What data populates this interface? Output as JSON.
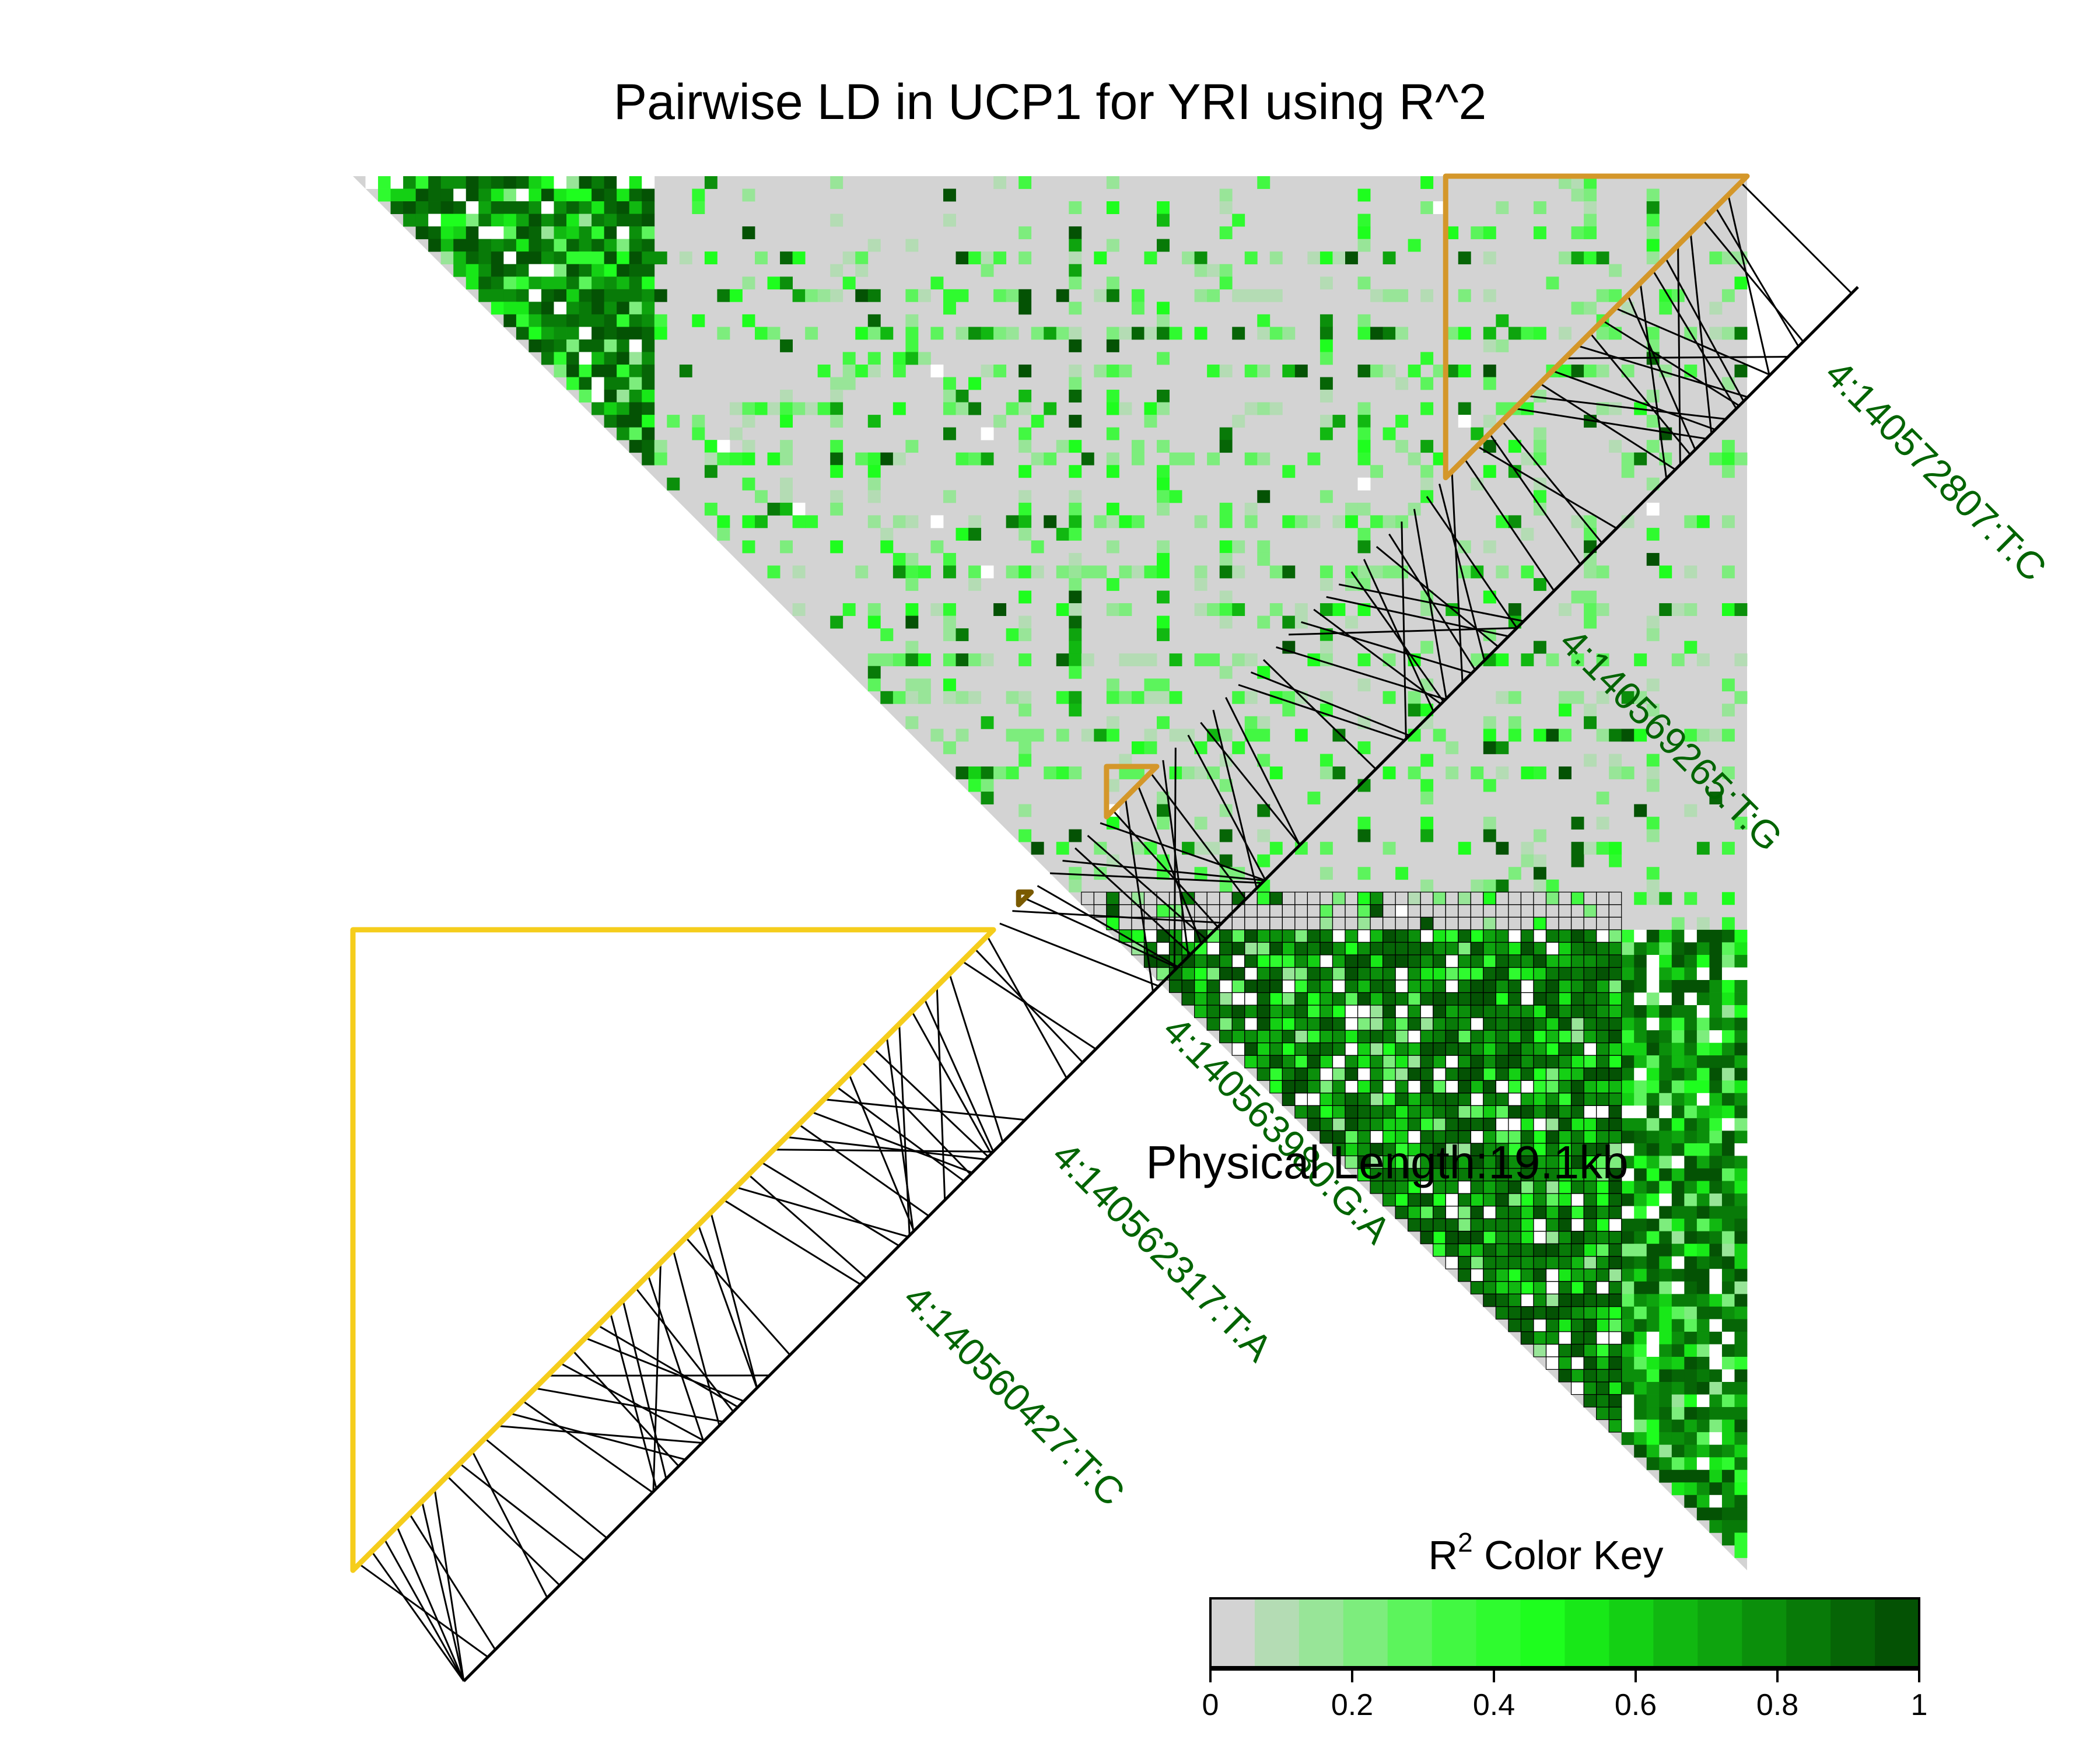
{
  "chart_data": {
    "type": "heatmap",
    "title": "Pairwise LD in UCP1 for YRI using R^2",
    "measure": "R^2",
    "physical_length_label": "Physical Length:19.1kb",
    "snp_count": 111,
    "snp_labels": [
      "4:140572807:T:C",
      "4:140569265:T:G",
      "4:140563980:G:A",
      "4:140562317:T:A",
      "4:140560427:T:C"
    ],
    "color_key": {
      "title_main": "R",
      "title_sup": "2",
      "title_rest": " Color Key",
      "ticks": [
        "0",
        "0.2",
        "0.4",
        "0.6",
        "0.8",
        "1"
      ],
      "range": [
        0,
        1
      ],
      "colors": [
        "#d3d3d3",
        "#b4dcb4",
        "#98e598",
        "#7ded7d",
        "#5cf45c",
        "#42f842",
        "#2ffb2f",
        "#1efe1e",
        "#18e818",
        "#14d014",
        "#11b811",
        "#0ea40e",
        "#0b8f0b",
        "#087a08",
        "#066506",
        "#045204"
      ]
    },
    "blocks": [
      {
        "snps": [
          1,
          24
        ],
        "color": "#d4972a"
      },
      {
        "snps": [
          48,
          51
        ],
        "color": "#d4972a"
      },
      {
        "snps": [
          58,
          58
        ],
        "color": "#7a5a00"
      },
      {
        "snps": [
          61,
          111
        ],
        "color": "#f5cd1c"
      }
    ],
    "highlighted_region": {
      "snps": [
        58,
        101
      ]
    },
    "colors": {
      "background_cell": "#d3d3d3",
      "label_text": "#006400",
      "block_gold": "#d4972a",
      "block_yellow": "#f5cd1c"
    }
  }
}
